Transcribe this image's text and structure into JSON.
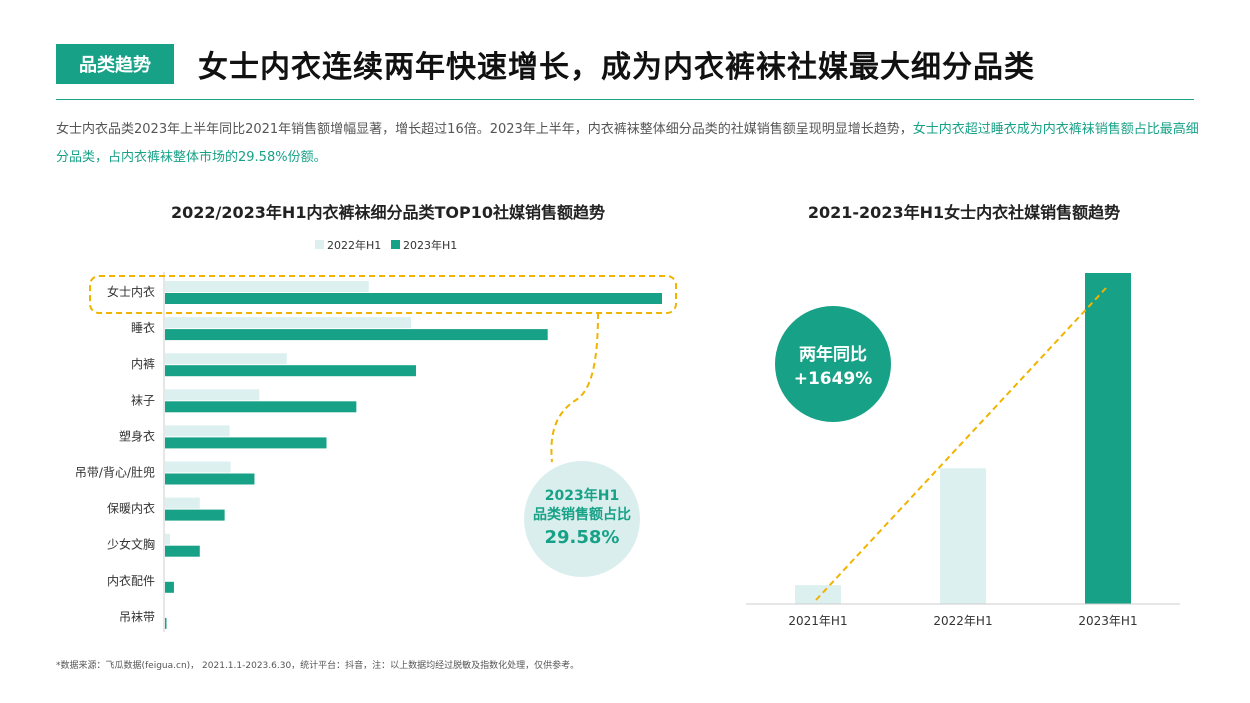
{
  "header": {
    "tag": "品类趋势",
    "title": "女士内衣连续两年快速增长，成为内衣裤袜社媒最大细分品类",
    "desc_plain": "女士内衣品类2023年上半年同比2021年销售额增幅显著，增长超过16倍。2023年上半年，内衣裤袜整体细分品类的社媒销售额呈现明显增长趋势，",
    "desc_highlight": "女士内衣超过睡衣成为内衣裤袜销售额占比最高细分品类，占内衣裤袜整体市场的29.58%份额。"
  },
  "colors": {
    "accent": "#17a287",
    "light": "#ddf0f0",
    "dashed": "#f0b400",
    "circle_light": "#dbeeee"
  },
  "chart_data": [
    {
      "type": "bar",
      "orientation": "horizontal",
      "title": "2022/2023年H1内衣裤袜细分品类TOP10社媒销售额趋势",
      "categories": [
        "女士内衣",
        "睡衣",
        "内裤",
        "袜子",
        "塑身衣",
        "吊带/背心/肚兜",
        "保暖内衣",
        "少女文胸",
        "内衣配件",
        "吊袜带"
      ],
      "series": [
        {
          "name": "2022年H1",
          "values": [
            41,
            49.5,
            24.5,
            19,
            13,
            13.2,
            7,
            1,
            0,
            0
          ]
        },
        {
          "name": "2023年H1",
          "values": [
            100,
            77,
            50.5,
            38.5,
            32.5,
            18,
            12,
            7,
            1.8,
            0.3
          ]
        }
      ],
      "xlim": [
        0,
        100
      ],
      "legend": "top-center",
      "callout": {
        "line1": "2023年H1",
        "line2": "品类销售额占比",
        "value": "29.58%"
      }
    },
    {
      "type": "bar",
      "title": "2021-2023年H1女士内衣社媒销售额趋势",
      "categories": [
        "2021年H1",
        "2022年H1",
        "2023年H1"
      ],
      "values": [
        5.7,
        41,
        100
      ],
      "ylim": [
        0,
        100
      ],
      "callout": {
        "line1": "两年同比",
        "line2": "+1649%"
      }
    }
  ],
  "footnote": "*数据来源：飞瓜数据(feigua.cn)， 2021.1.1-2023.6.30，统计平台：抖音，注：以上数据均经过脱敏及指数化处理，仅供参考。"
}
